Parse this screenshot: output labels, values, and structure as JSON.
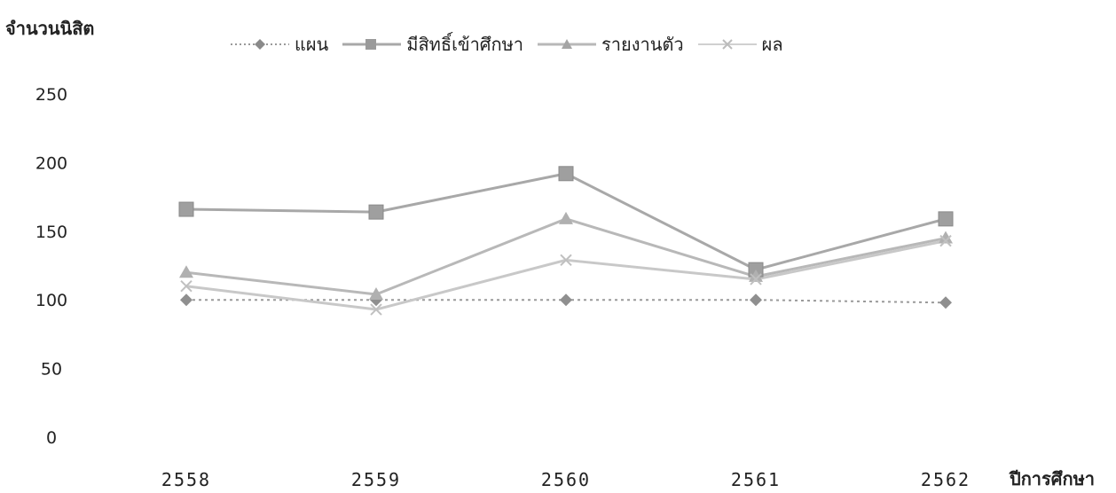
{
  "chart_data": {
    "type": "line",
    "ylabel": "จำนวนนิสิต",
    "xlabel": "ปีการศึกษา",
    "categories": [
      "2558",
      "2559",
      "2560",
      "2561",
      "2562"
    ],
    "ylim": [
      0,
      250
    ],
    "yticks": [
      "0",
      "50",
      "100",
      "150",
      "200",
      "250"
    ],
    "legend_position": "top",
    "grid": false,
    "series": [
      {
        "name": "แผน",
        "values": [
          100,
          100,
          100,
          100,
          98
        ],
        "color": "#9a9a9a",
        "marker": "diamond",
        "dash": "dotted"
      },
      {
        "name": "มีสิทธิ์เข้าศึกษา",
        "values": [
          166,
          164,
          192,
          122,
          159
        ],
        "color": "#a8a8a8",
        "marker": "square",
        "dash": "solid"
      },
      {
        "name": "รายงานตัว",
        "values": [
          120,
          104,
          159,
          117,
          145
        ],
        "color": "#b8b8b8",
        "marker": "triangle",
        "dash": "solid"
      },
      {
        "name": "ผล",
        "values": [
          110,
          93,
          129,
          115,
          143
        ],
        "color": "#c8c8c8",
        "marker": "x",
        "dash": "solid"
      }
    ]
  }
}
